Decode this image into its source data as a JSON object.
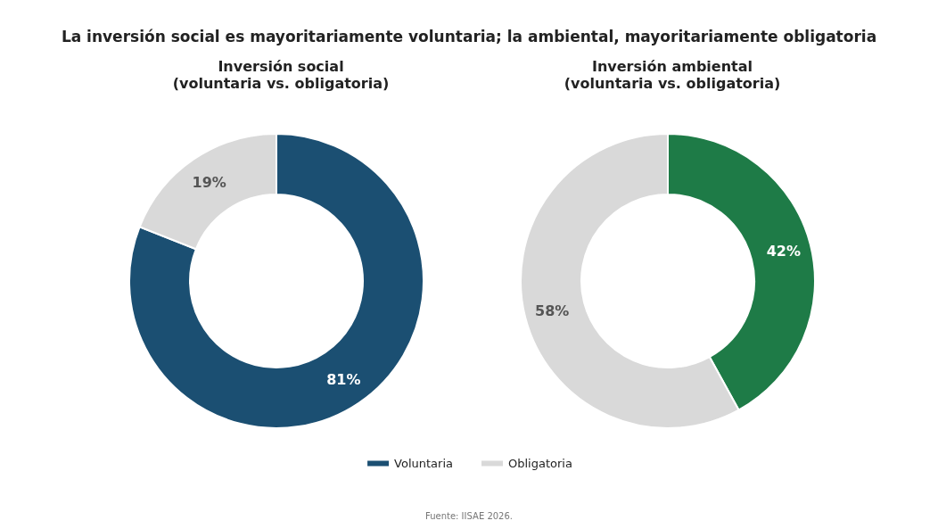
{
  "chart_data": [
    {
      "type": "donut",
      "title": "La inversión social es mayoritariamente voluntaria; la ambiental, mayoritariamente obligatoria",
      "subtitle": "Inversión social\n(voluntaria vs. obligatoria)",
      "categories": [
        "Voluntaria",
        "Obligatoria"
      ],
      "values": [
        81,
        19
      ],
      "value_labels": [
        "81%",
        "19%"
      ],
      "colors": [
        "#1b4f72",
        "#d9d9d9"
      ],
      "legend": "bottom",
      "annotations": [
        "Fuente: IISAE 2026."
      ]
    },
    {
      "type": "donut",
      "title": "Inversión ambiental\n(voluntaria vs. obligatoria)",
      "categories": [
        null,
        null
      ],
      "values": [
        42,
        58
      ],
      "value_labels": [
        "42%",
        "58%"
      ],
      "colors": [
        "#1e7b47",
        "#d9d9d9"
      ]
    }
  ]
}
